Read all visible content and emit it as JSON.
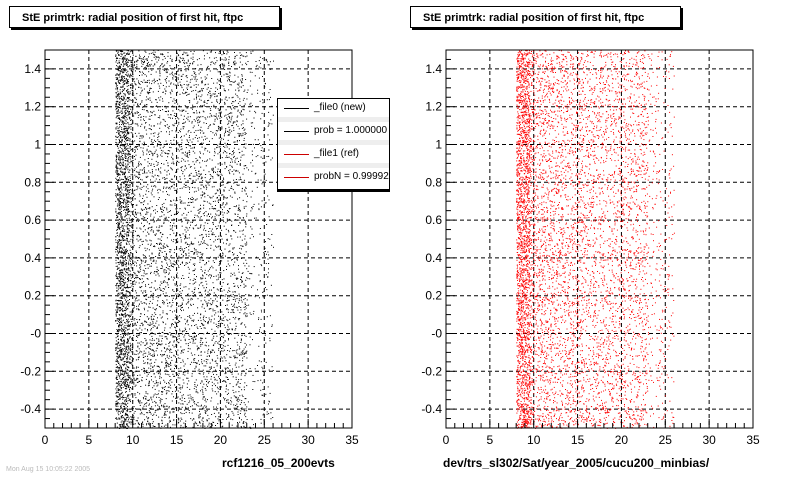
{
  "panels": [
    {
      "title": "StE primtrk: radial position of first hit, ftpc",
      "footer": "rcf1216_05_200evts",
      "marker_color": "#000000"
    },
    {
      "title": "StE primtrk: radial position of first hit, ftpc",
      "footer": "dev/trs_sl302/Sat/year_2005/cucu200_minbias/",
      "marker_color": "#ff0000"
    }
  ],
  "legend": {
    "entries": [
      {
        "label": "_file0 (new)",
        "color": "#000000"
      },
      {
        "label": "prob = 1.000000",
        "color": "#000000"
      },
      {
        "label": "_file1 (ref)",
        "color": "#cc0000"
      },
      {
        "label": "probN = 0.99992",
        "color": "#cc0000"
      }
    ]
  },
  "chart_data": {
    "type": "scatter",
    "xlim": [
      0,
      35
    ],
    "ylim": [
      -0.5,
      1.5
    ],
    "x_ticks": [
      0,
      5,
      10,
      15,
      20,
      25,
      30,
      35
    ],
    "y_ticks": [
      -0.4,
      -0.2,
      0,
      0.2,
      0.4,
      0.6,
      0.8,
      1,
      1.2,
      1.4
    ],
    "y_tick_labels": [
      "-0.4",
      "-0.2",
      "-0",
      "0.2",
      "0.4",
      "0.6",
      "0.8",
      "1",
      "1.2",
      "1.4"
    ],
    "x_tick_labels": [
      "0",
      "5",
      "10",
      "15",
      "20",
      "25",
      "30",
      "35"
    ],
    "grid": true,
    "distribution": {
      "dense_band_x": [
        8,
        9.5
      ],
      "main_body_x": [
        9.5,
        23
      ],
      "tail_x": [
        23,
        26
      ],
      "y_range": [
        -0.5,
        1.5
      ],
      "note_points_per_panel": 7000
    }
  },
  "corner_text": "Mon Aug 15 10:05:22 2005"
}
